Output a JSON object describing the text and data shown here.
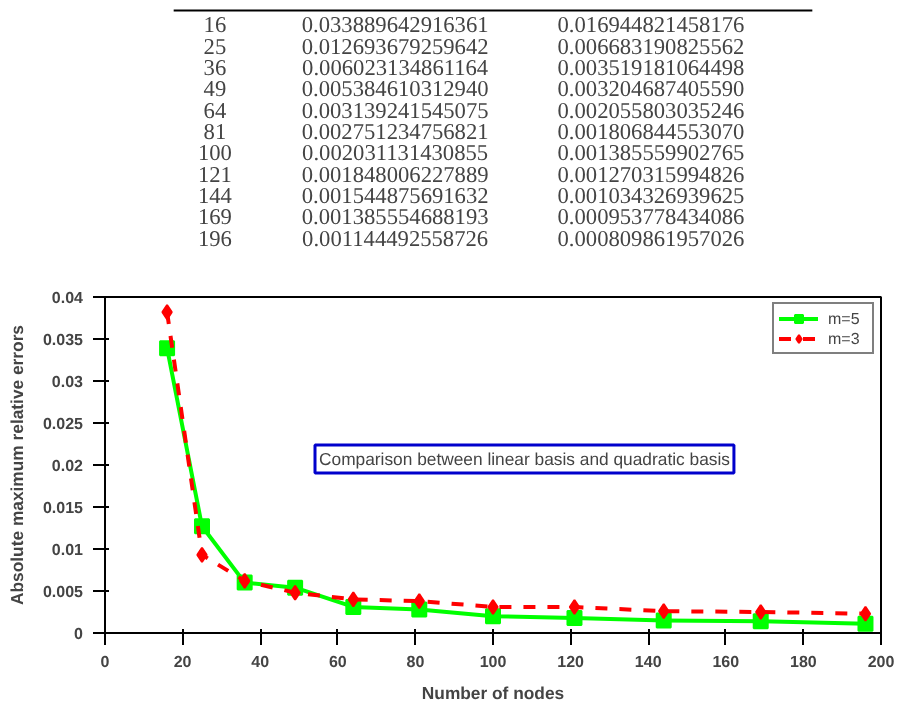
{
  "chart_data": [
    {
      "type": "other",
      "annotations": [
        "16",
        "0.033889642916361",
        "0.016944821458176",
        "25",
        "0.012693679259642",
        "0.006683190825562",
        "36",
        "0.006023134861164",
        "0.003519181064498",
        "49",
        "0.005384610312940",
        "0.003204687405590",
        "64",
        "0.003139241545075",
        "0.002055803035246",
        "81",
        "0.002751234756821",
        "0.001806844553070",
        "100",
        "0.002031131430855",
        "0.001385559902765",
        "121",
        "0.001848006227889",
        "0.001270315994826",
        "144",
        "0.001544875691632",
        "0.001034326939625",
        "169",
        "0.001385554688193",
        "0.000953778434086",
        "196",
        "0.001144492558726",
        "0.000809861957026"
      ]
    },
    {
      "type": "line",
      "xlabel": "Number of nodes",
      "ylabel": "Absolute maximum relative errors",
      "annotations": [
        "Comparison between linear basis and quadratic basis"
      ],
      "x": [
        16,
        25,
        36,
        49,
        64,
        81,
        100,
        121,
        144,
        169,
        196
      ],
      "series": [
        {
          "name": "m=3",
          "color": "#ff0000",
          "line_style": "dashed",
          "marker": "diamond",
          "values": [
            0.0382,
            0.0093,
            0.0062,
            0.0048,
            0.004,
            0.0038,
            0.0031,
            0.0031,
            0.0026,
            0.0025,
            0.0023
          ]
        },
        {
          "name": "m=5",
          "color": "#00ff00",
          "line_style": "solid",
          "marker": "square",
          "values": [
            0.0339,
            0.0127,
            0.006,
            0.0054,
            0.0031,
            0.0028,
            0.002,
            0.0018,
            0.0015,
            0.0014,
            0.0011
          ]
        }
      ],
      "xlim": [
        0,
        200
      ],
      "xticks": [
        0,
        20,
        40,
        60,
        80,
        100,
        120,
        140,
        160,
        180,
        200
      ],
      "ylim": [
        0,
        0.04
      ],
      "yticks": [
        0,
        0.005,
        0.01,
        0.015,
        0.02,
        0.025,
        0.03,
        0.035,
        0.04
      ],
      "grid": false,
      "legend": "top right"
    }
  ]
}
